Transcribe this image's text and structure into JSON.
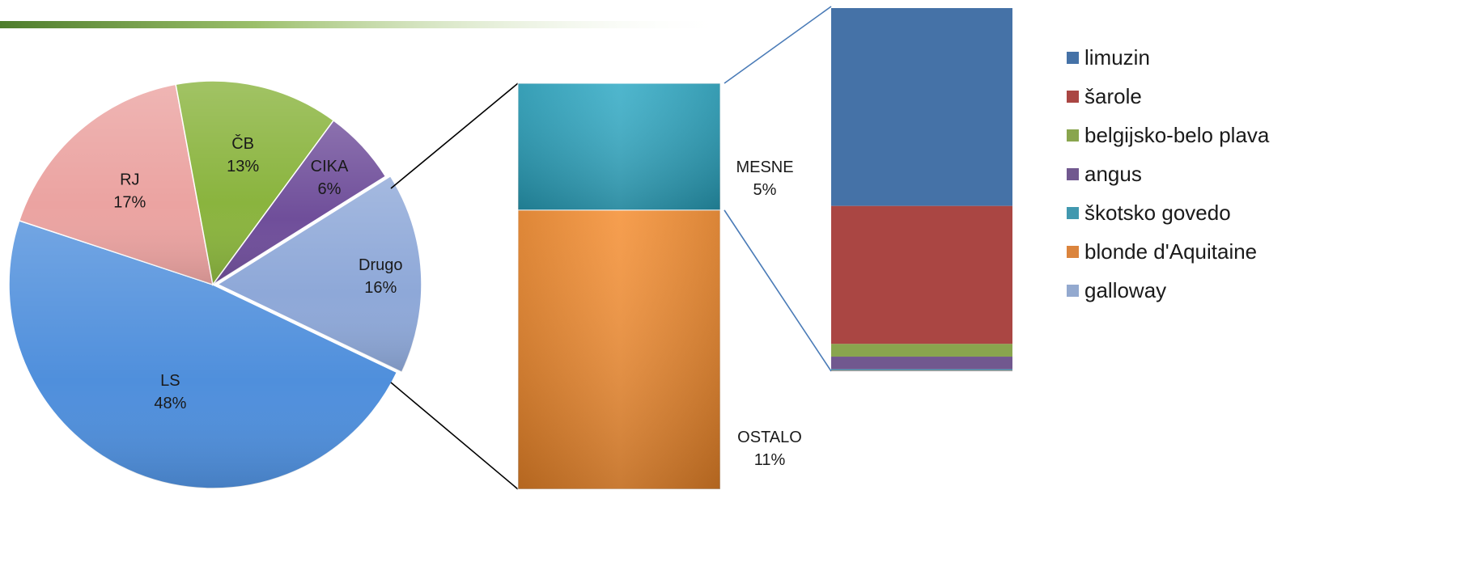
{
  "chart_data": [
    {
      "type": "pie",
      "slices": [
        {
          "label": "LS",
          "value": 48,
          "pct_label": "48%",
          "color": "#4f8fdc"
        },
        {
          "label": "RJ",
          "value": 17,
          "pct_label": "17%",
          "color": "#eba3a1"
        },
        {
          "label": "ČB",
          "value": 13,
          "pct_label": "13%",
          "color": "#8ab43e"
        },
        {
          "label": "CIKA",
          "value": 6,
          "pct_label": "6%",
          "color": "#6f4e9a"
        },
        {
          "label": "Drugo",
          "value": 16,
          "pct_label": "16%",
          "color": "#8ea8d8"
        }
      ]
    },
    {
      "type": "bar",
      "stacked": true,
      "segments": [
        {
          "label": "MESNE",
          "value": 5,
          "pct_label": "5%",
          "color": "#2aa7c3"
        },
        {
          "label": "OSTALO",
          "value": 11,
          "pct_label": "11%",
          "color": "#f48a2a"
        }
      ]
    },
    {
      "type": "bar",
      "stacked": true,
      "segments": [
        {
          "label": "limuzin",
          "value": 54.5,
          "color": "#4572a7"
        },
        {
          "label": "šarole",
          "value": 38,
          "color": "#aa4643"
        },
        {
          "label": "belgijsko-belo plava",
          "value": 3.5,
          "color": "#89a54e"
        },
        {
          "label": "angus",
          "value": 3.5,
          "color": "#71588f"
        },
        {
          "label": "škotsko govedo",
          "value": 0.3,
          "color": "#4198af"
        },
        {
          "label": "blonde d'Aquitaine",
          "value": 0.1,
          "color": "#db843d"
        },
        {
          "label": "galloway",
          "value": 0.1,
          "color": "#93a9cf"
        }
      ],
      "legend": {
        "placement": "right",
        "entries": [
          "limuzin",
          "šarole",
          "belgijsko-belo plava",
          "angus",
          "škotsko govedo",
          "blonde d'Aquitaine",
          "galloway"
        ]
      }
    }
  ]
}
